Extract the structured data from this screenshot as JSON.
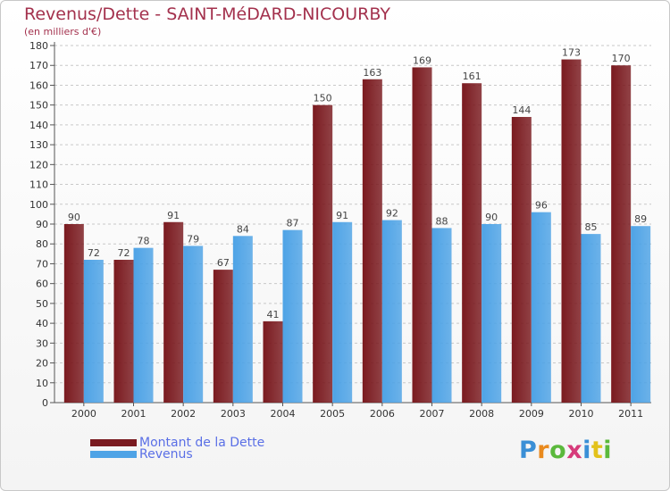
{
  "header": {
    "title": "Revenus/Dette - SAINT-MéDARD-NICOURBY",
    "subtitle": "(en milliers d'€)"
  },
  "chart_data": {
    "type": "bar",
    "categories": [
      "2000",
      "2001",
      "2002",
      "2003",
      "2004",
      "2005",
      "2006",
      "2007",
      "2008",
      "2009",
      "2010",
      "2011"
    ],
    "series": [
      {
        "name": "Montant de la Dette",
        "color": "#7a1a1f",
        "values": [
          90,
          72,
          91,
          67,
          41,
          150,
          163,
          169,
          161,
          144,
          173,
          170
        ]
      },
      {
        "name": "Revenus",
        "color": "#4ea3e6",
        "values": [
          72,
          78,
          79,
          84,
          87,
          91,
          92,
          88,
          90,
          96,
          85,
          89
        ]
      }
    ],
    "ylim": [
      0,
      180
    ],
    "ytick_step": 10,
    "grid": true,
    "legend": "bottom-left"
  },
  "brand": {
    "text": "Proxiti"
  }
}
